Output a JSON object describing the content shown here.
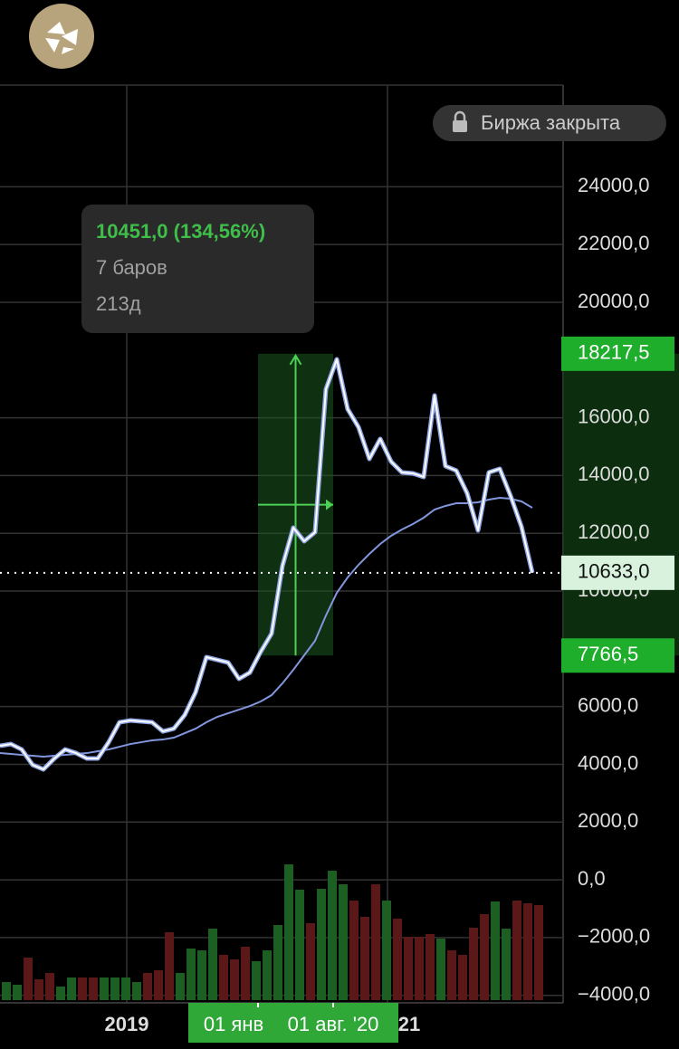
{
  "status": "Биржа закрыта",
  "tooltip": {
    "change": "10451,0 (134,56%)",
    "bars": "7 баров",
    "duration": "213д"
  },
  "x_labels": [
    "2019",
    "01 янв",
    "01 авг. '20",
    "21"
  ],
  "chart": {
    "ylim": [
      -4260,
      27490
    ],
    "yticks": [
      {
        "value": 24000,
        "label": "24000,0"
      },
      {
        "value": 22000,
        "label": "22000,0"
      },
      {
        "value": 20000,
        "label": "20000,0"
      },
      {
        "value": 16000,
        "label": "16000,0"
      },
      {
        "value": 14000,
        "label": "14000,0"
      },
      {
        "value": 12000,
        "label": "12000,0"
      },
      {
        "value": 10000,
        "label": "10000,0"
      },
      {
        "value": 6000,
        "label": "6000,0"
      },
      {
        "value": 4000,
        "label": "4000,0"
      },
      {
        "value": 2000,
        "label": "2000,0"
      },
      {
        "value": 0,
        "label": "0,0"
      },
      {
        "value": -2000,
        "label": "−2000,0"
      },
      {
        "value": -4000,
        "label": "−4000,0"
      }
    ],
    "price": [
      4640,
      4702,
      4514,
      3981,
      3825,
      4201,
      4514,
      4389,
      4201,
      4201,
      4765,
      5455,
      5518,
      5486,
      5455,
      5141,
      5235,
      5706,
      6489,
      7712,
      7618,
      7524,
      6960,
      7179,
      7900,
      8527,
      10878,
      12195,
      11725,
      12038,
      16992,
      18026,
      16302,
      15675,
      14578,
      15267,
      14484,
      14108,
      14076,
      13951,
      16772,
      14327,
      14170,
      13386,
      12101,
      14108,
      14233,
      13292,
      12227,
      10633
    ],
    "ma": [
      4389,
      4358,
      4326,
      4295,
      4264,
      4295,
      4326,
      4358,
      4389,
      4452,
      4514,
      4608,
      4702,
      4765,
      4828,
      4859,
      4922,
      5079,
      5235,
      5455,
      5643,
      5768,
      5894,
      6019,
      6176,
      6395,
      6803,
      7273,
      7775,
      8276,
      9154,
      9938,
      10471,
      10910,
      11286,
      11631,
      11913,
      12132,
      12320,
      12540,
      12822,
      12948,
      13042,
      13042,
      13073,
      13167,
      13230,
      13198,
      13104,
      12885
    ],
    "volume": [
      20,
      17,
      47,
      23,
      30,
      15,
      25,
      25,
      25,
      25,
      25,
      25,
      20,
      30,
      33,
      75,
      30,
      57,
      55,
      79,
      50,
      45,
      59,
      43,
      55,
      83,
      150,
      122,
      85,
      123,
      143,
      128,
      110,
      92,
      128,
      110,
      90,
      70,
      70,
      73,
      68,
      55,
      50,
      80,
      95,
      109,
      79,
      110,
      107,
      105
    ],
    "last": {
      "value": 10633,
      "label": "10633,0"
    },
    "range_high": {
      "value": 18217.5,
      "label": "18217,5"
    },
    "range_low": {
      "value": 7766.5,
      "label": "7766,5"
    }
  }
}
